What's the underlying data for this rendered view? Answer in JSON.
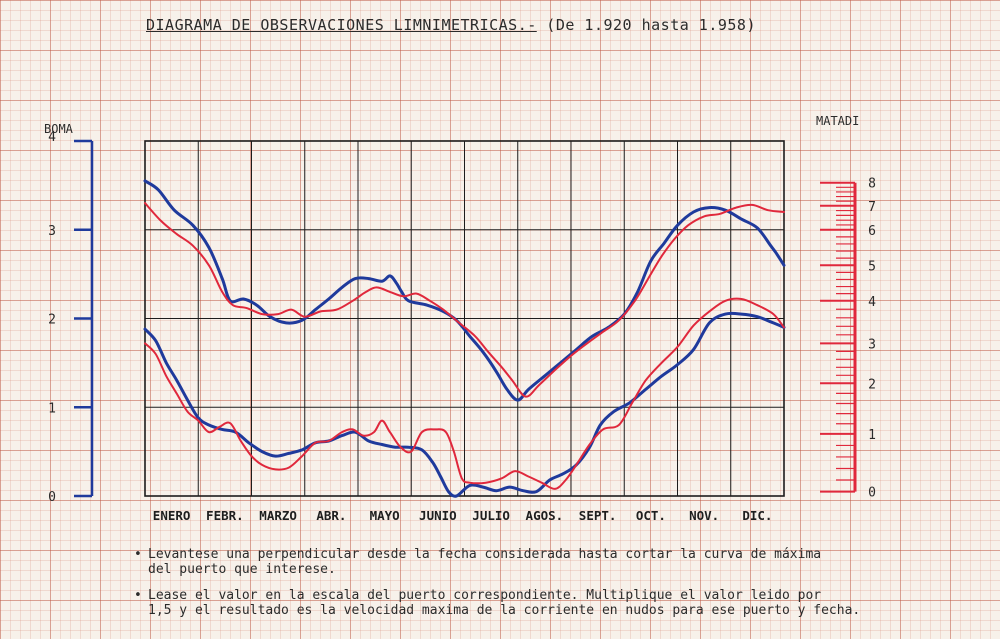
{
  "title": {
    "main": "DIAGRAMA DE OBSERVACIONES LIMNIMETRICAS.-",
    "sub": "(De 1.920 hasta 1.958)"
  },
  "axes": {
    "left_name": "BOMA",
    "right_name": "MATADI"
  },
  "notes": [
    "Levantese una perpendicular desde la fecha considerada hasta cortar la curva de máxima del puerto que interese.",
    "Lease el valor en la escala del puerto correspondiente. Multiplique el valor leido por 1,5 y el resultado es la velocidad maxima de la corriente en nudos para ese puerto y fecha."
  ],
  "note_lines": [
    [
      "Levantese una perpendicular desde la fecha considerada hasta cortar la curva de máxima",
      "del puerto que interese."
    ],
    [
      "Lease el valor en la escala del puerto correspondiente. Multiplique el valor leido por",
      "1,5 y el resultado es la velocidad maxima de la corriente en nudos para ese puerto y fecha."
    ]
  ],
  "chart_data": {
    "type": "line",
    "title": "DIAGRAMA DE OBSERVACIONES LIMNIMETRICAS.-",
    "subtitle": "(De 1.920 hasta 1.958)",
    "categories": [
      "ENERO",
      "FEBR.",
      "MARZO",
      "ABR.",
      "MAYO",
      "JUNIO",
      "JULIO",
      "AGOS.",
      "SEPT.",
      "OCT.",
      "NOV.",
      "DIC."
    ],
    "x_range": [
      0,
      12
    ],
    "left_axis": {
      "label": "BOMA",
      "ylim": [
        0,
        4
      ],
      "ticks": [
        "0",
        "1",
        "2",
        "3",
        "4"
      ],
      "color": "#1f3a9c"
    },
    "right_axis": {
      "label": "MATADI",
      "ticks": [
        {
          "label": "0",
          "boma_level": 0.05
        },
        {
          "label": "1",
          "boma_level": 0.7
        },
        {
          "label": "2",
          "boma_level": 1.27
        },
        {
          "label": "3",
          "boma_level": 1.72
        },
        {
          "label": "4",
          "boma_level": 2.2
        },
        {
          "label": "5",
          "boma_level": 2.6
        },
        {
          "label": "6",
          "boma_level": 3.0
        },
        {
          "label": "7",
          "boma_level": 3.27
        },
        {
          "label": "8",
          "boma_level": 3.53
        }
      ],
      "color": "#e0283c"
    },
    "grid": true,
    "series": [
      {
        "color": "#1f3a9c",
        "points": [
          [
            0,
            3.55
          ],
          [
            0.25,
            3.45
          ],
          [
            0.55,
            3.22
          ],
          [
            0.9,
            3.05
          ],
          [
            1.2,
            2.8
          ],
          [
            1.45,
            2.45
          ],
          [
            1.6,
            2.2
          ],
          [
            1.85,
            2.22
          ],
          [
            2.1,
            2.15
          ],
          [
            2.35,
            2.02
          ],
          [
            2.65,
            1.95
          ],
          [
            2.95,
            1.98
          ],
          [
            3.2,
            2.1
          ],
          [
            3.45,
            2.22
          ],
          [
            3.7,
            2.35
          ],
          [
            3.95,
            2.45
          ],
          [
            4.2,
            2.45
          ],
          [
            4.45,
            2.42
          ],
          [
            4.6,
            2.48
          ],
          [
            4.72,
            2.4
          ],
          [
            4.82,
            2.3
          ],
          [
            4.95,
            2.2
          ],
          [
            5.3,
            2.15
          ],
          [
            5.6,
            2.08
          ],
          [
            5.85,
            1.98
          ],
          [
            6.1,
            1.8
          ],
          [
            6.35,
            1.62
          ],
          [
            6.6,
            1.4
          ],
          [
            6.8,
            1.2
          ],
          [
            7.0,
            1.08
          ],
          [
            7.2,
            1.2
          ],
          [
            7.5,
            1.35
          ],
          [
            7.8,
            1.5
          ],
          [
            8.1,
            1.65
          ],
          [
            8.4,
            1.8
          ],
          [
            8.7,
            1.9
          ],
          [
            9.0,
            2.05
          ],
          [
            9.25,
            2.3
          ],
          [
            9.5,
            2.65
          ],
          [
            9.75,
            2.85
          ],
          [
            10.0,
            3.05
          ],
          [
            10.3,
            3.2
          ],
          [
            10.6,
            3.25
          ],
          [
            10.9,
            3.22
          ],
          [
            11.2,
            3.12
          ],
          [
            11.5,
            3.02
          ],
          [
            11.75,
            2.82
          ],
          [
            11.85,
            2.74
          ],
          [
            12.0,
            2.6
          ]
        ]
      },
      {
        "color": "#e0283c",
        "points": [
          [
            0,
            3.3
          ],
          [
            0.3,
            3.1
          ],
          [
            0.6,
            2.95
          ],
          [
            0.9,
            2.82
          ],
          [
            1.2,
            2.6
          ],
          [
            1.45,
            2.3
          ],
          [
            1.65,
            2.15
          ],
          [
            1.9,
            2.12
          ],
          [
            2.2,
            2.05
          ],
          [
            2.5,
            2.05
          ],
          [
            2.75,
            2.1
          ],
          [
            3.0,
            2.02
          ],
          [
            3.3,
            2.08
          ],
          [
            3.6,
            2.1
          ],
          [
            3.9,
            2.2
          ],
          [
            4.15,
            2.3
          ],
          [
            4.35,
            2.35
          ],
          [
            4.6,
            2.3
          ],
          [
            4.85,
            2.25
          ],
          [
            5.1,
            2.28
          ],
          [
            5.35,
            2.2
          ],
          [
            5.6,
            2.1
          ],
          [
            5.9,
            1.95
          ],
          [
            6.2,
            1.8
          ],
          [
            6.45,
            1.62
          ],
          [
            6.7,
            1.45
          ],
          [
            6.9,
            1.3
          ],
          [
            7.15,
            1.12
          ],
          [
            7.4,
            1.25
          ],
          [
            7.7,
            1.42
          ],
          [
            8.0,
            1.58
          ],
          [
            8.3,
            1.72
          ],
          [
            8.6,
            1.85
          ],
          [
            8.9,
            1.98
          ],
          [
            9.2,
            2.2
          ],
          [
            9.45,
            2.45
          ],
          [
            9.7,
            2.7
          ],
          [
            9.95,
            2.9
          ],
          [
            10.2,
            3.05
          ],
          [
            10.5,
            3.15
          ],
          [
            10.8,
            3.18
          ],
          [
            11.1,
            3.25
          ],
          [
            11.4,
            3.28
          ],
          [
            11.7,
            3.22
          ],
          [
            12.0,
            3.2
          ]
        ]
      },
      {
        "color": "#1f3a9c",
        "points": [
          [
            0,
            1.88
          ],
          [
            0.2,
            1.75
          ],
          [
            0.4,
            1.5
          ],
          [
            0.6,
            1.3
          ],
          [
            0.8,
            1.08
          ],
          [
            1.0,
            0.88
          ],
          [
            1.2,
            0.8
          ],
          [
            1.45,
            0.75
          ],
          [
            1.7,
            0.72
          ],
          [
            1.95,
            0.6
          ],
          [
            2.2,
            0.5
          ],
          [
            2.45,
            0.45
          ],
          [
            2.7,
            0.48
          ],
          [
            2.95,
            0.52
          ],
          [
            3.2,
            0.6
          ],
          [
            3.45,
            0.62
          ],
          [
            3.7,
            0.68
          ],
          [
            3.95,
            0.72
          ],
          [
            4.2,
            0.62
          ],
          [
            4.45,
            0.58
          ],
          [
            4.7,
            0.55
          ],
          [
            4.95,
            0.55
          ],
          [
            5.2,
            0.52
          ],
          [
            5.4,
            0.38
          ],
          [
            5.55,
            0.22
          ],
          [
            5.7,
            0.05
          ],
          [
            5.85,
            0.0
          ],
          [
            6.1,
            0.12
          ],
          [
            6.35,
            0.1
          ],
          [
            6.6,
            0.06
          ],
          [
            6.85,
            0.1
          ],
          [
            7.1,
            0.06
          ],
          [
            7.35,
            0.05
          ],
          [
            7.6,
            0.18
          ],
          [
            7.85,
            0.25
          ],
          [
            8.1,
            0.35
          ],
          [
            8.35,
            0.55
          ],
          [
            8.55,
            0.8
          ],
          [
            8.8,
            0.95
          ],
          [
            9.1,
            1.05
          ],
          [
            9.4,
            1.2
          ],
          [
            9.7,
            1.35
          ],
          [
            10.0,
            1.48
          ],
          [
            10.3,
            1.65
          ],
          [
            10.6,
            1.95
          ],
          [
            10.9,
            2.05
          ],
          [
            11.2,
            2.05
          ],
          [
            11.5,
            2.02
          ],
          [
            11.8,
            1.95
          ],
          [
            12.0,
            1.9
          ]
        ]
      },
      {
        "color": "#e0283c",
        "points": [
          [
            0,
            1.72
          ],
          [
            0.2,
            1.6
          ],
          [
            0.4,
            1.35
          ],
          [
            0.6,
            1.15
          ],
          [
            0.8,
            0.95
          ],
          [
            1.0,
            0.85
          ],
          [
            1.2,
            0.72
          ],
          [
            1.4,
            0.78
          ],
          [
            1.6,
            0.82
          ],
          [
            1.8,
            0.62
          ],
          [
            2.0,
            0.45
          ],
          [
            2.2,
            0.35
          ],
          [
            2.45,
            0.3
          ],
          [
            2.7,
            0.32
          ],
          [
            2.95,
            0.45
          ],
          [
            3.2,
            0.6
          ],
          [
            3.45,
            0.62
          ],
          [
            3.7,
            0.72
          ],
          [
            3.9,
            0.75
          ],
          [
            4.1,
            0.68
          ],
          [
            4.3,
            0.72
          ],
          [
            4.45,
            0.85
          ],
          [
            4.6,
            0.72
          ],
          [
            4.8,
            0.55
          ],
          [
            5.0,
            0.5
          ],
          [
            5.2,
            0.72
          ],
          [
            5.45,
            0.75
          ],
          [
            5.65,
            0.72
          ],
          [
            5.8,
            0.5
          ],
          [
            5.95,
            0.2
          ],
          [
            6.1,
            0.15
          ],
          [
            6.4,
            0.15
          ],
          [
            6.7,
            0.2
          ],
          [
            6.95,
            0.28
          ],
          [
            7.2,
            0.22
          ],
          [
            7.45,
            0.15
          ],
          [
            7.7,
            0.08
          ],
          [
            7.9,
            0.18
          ],
          [
            8.1,
            0.35
          ],
          [
            8.35,
            0.58
          ],
          [
            8.6,
            0.75
          ],
          [
            8.9,
            0.8
          ],
          [
            9.15,
            1.05
          ],
          [
            9.4,
            1.3
          ],
          [
            9.7,
            1.5
          ],
          [
            10.0,
            1.68
          ],
          [
            10.3,
            1.92
          ],
          [
            10.6,
            2.08
          ],
          [
            10.9,
            2.2
          ],
          [
            11.2,
            2.22
          ],
          [
            11.5,
            2.15
          ],
          [
            11.8,
            2.05
          ],
          [
            12.0,
            1.9
          ]
        ]
      }
    ]
  }
}
